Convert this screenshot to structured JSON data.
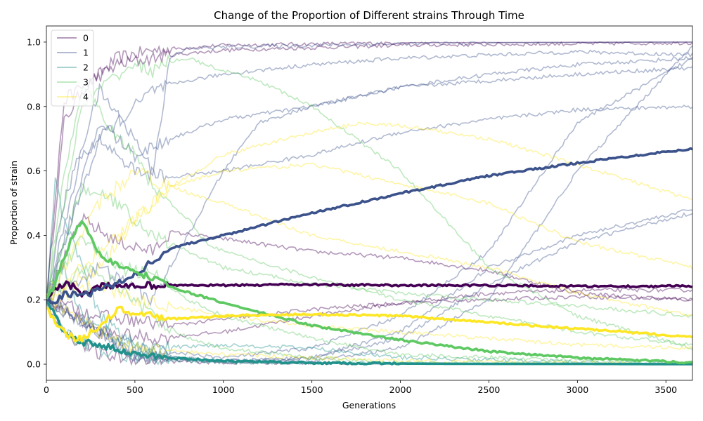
{
  "chart_data": {
    "type": "line",
    "title": "Change of the Proportion of Different strains Through Time",
    "xlabel": "Generations",
    "ylabel": "Proportion of strain",
    "xlim": [
      0,
      3650
    ],
    "ylim": [
      -0.05,
      1.05
    ],
    "x_ticks": [
      0,
      500,
      1000,
      1500,
      2000,
      2500,
      3000,
      3500
    ],
    "y_ticks": [
      0.0,
      0.2,
      0.4,
      0.6,
      0.8,
      1.0
    ],
    "x_tick_labels": [
      "0",
      "500",
      "1000",
      "1500",
      "2000",
      "2500",
      "3000",
      "3500"
    ],
    "y_tick_labels": [
      "0.0",
      "0.2",
      "0.4",
      "0.6",
      "0.8",
      "1.0"
    ],
    "grid": false,
    "legend_position": "top-left",
    "legend": [
      {
        "label": "0",
        "color": "#440154"
      },
      {
        "label": "1",
        "color": "#3b528b"
      },
      {
        "label": "2",
        "color": "#21918c"
      },
      {
        "label": "3",
        "color": "#5ec962"
      },
      {
        "label": "4",
        "color": "#fde725"
      }
    ],
    "mean_series": [
      {
        "strain": "0",
        "color": "#440154",
        "x": [
          0,
          50,
          100,
          150,
          200,
          300,
          400,
          500,
          1000,
          1500,
          2000,
          2500,
          3000,
          3500,
          3650
        ],
        "y": [
          0.2,
          0.23,
          0.25,
          0.24,
          0.22,
          0.24,
          0.245,
          0.245,
          0.245,
          0.247,
          0.245,
          0.245,
          0.242,
          0.242,
          0.243
        ]
      },
      {
        "strain": "1",
        "color": "#3b528b",
        "x": [
          0,
          50,
          100,
          200,
          300,
          400,
          500,
          600,
          700,
          1000,
          1500,
          2000,
          2500,
          3000,
          3500,
          3650
        ],
        "y": [
          0.2,
          0.19,
          0.22,
          0.21,
          0.23,
          0.25,
          0.28,
          0.32,
          0.36,
          0.4,
          0.47,
          0.53,
          0.585,
          0.625,
          0.66,
          0.668
        ]
      },
      {
        "strain": "2",
        "color": "#21918c",
        "x": [
          0,
          50,
          100,
          200,
          300,
          400,
          500,
          700,
          1000,
          1500,
          2000,
          2500,
          3000,
          3650
        ],
        "y": [
          0.2,
          0.15,
          0.1,
          0.07,
          0.06,
          0.045,
          0.03,
          0.02,
          0.01,
          0.004,
          0.002,
          0.001,
          0.001,
          0.0
        ]
      },
      {
        "strain": "3",
        "color": "#5ec962",
        "x": [
          0,
          50,
          100,
          150,
          200,
          250,
          300,
          400,
          500,
          600,
          700,
          1000,
          1500,
          2000,
          2500,
          3000,
          3650
        ],
        "y": [
          0.2,
          0.25,
          0.33,
          0.4,
          0.44,
          0.39,
          0.34,
          0.31,
          0.28,
          0.27,
          0.24,
          0.19,
          0.12,
          0.075,
          0.04,
          0.02,
          0.005
        ]
      },
      {
        "strain": "4",
        "color": "#fde725",
        "x": [
          0,
          50,
          100,
          150,
          200,
          250,
          300,
          400,
          500,
          600,
          700,
          1000,
          1500,
          2000,
          2500,
          3000,
          3650
        ],
        "y": [
          0.18,
          0.13,
          0.1,
          0.08,
          0.08,
          0.1,
          0.12,
          0.17,
          0.16,
          0.15,
          0.14,
          0.15,
          0.155,
          0.15,
          0.13,
          0.11,
          0.085
        ]
      }
    ],
    "replicate_series": [
      {
        "strain": "0",
        "x": [
          0,
          100,
          200,
          400,
          600,
          1000,
          2000,
          3650
        ],
        "y": [
          0.2,
          0.75,
          0.85,
          0.95,
          0.975,
          0.99,
          0.998,
          1.0
        ]
      },
      {
        "strain": "0",
        "x": [
          0,
          100,
          200,
          400,
          700,
          1000,
          2000,
          3650
        ],
        "y": [
          0.2,
          0.82,
          0.86,
          0.93,
          0.96,
          0.975,
          0.99,
          0.998
        ]
      },
      {
        "strain": "0",
        "x": [
          0,
          200,
          400,
          600,
          700,
          1000,
          1500,
          2000,
          2500,
          3000,
          3650
        ],
        "y": [
          0.2,
          0.45,
          0.38,
          0.35,
          0.41,
          0.39,
          0.35,
          0.33,
          0.29,
          0.22,
          0.2
        ]
      },
      {
        "strain": "0",
        "x": [
          0,
          300,
          600,
          1000,
          1500,
          2000,
          2500,
          3000,
          3650
        ],
        "y": [
          0.2,
          0.1,
          0.08,
          0.1,
          0.15,
          0.19,
          0.22,
          0.23,
          0.23
        ]
      },
      {
        "strain": "0",
        "x": [
          0,
          300,
          700,
          1000,
          1500,
          2000,
          2500,
          3000,
          3650
        ],
        "y": [
          0.2,
          0.15,
          0.12,
          0.14,
          0.17,
          0.19,
          0.2,
          0.21,
          0.2
        ]
      },
      {
        "strain": "0",
        "x": [
          0,
          100,
          300,
          600,
          1000,
          2000,
          3650
        ],
        "y": [
          0.2,
          0.1,
          0.03,
          0.01,
          0.005,
          0.001,
          0.0
        ]
      },
      {
        "strain": "1",
        "x": [
          0,
          100,
          300,
          500,
          600,
          700,
          800,
          1000,
          1500,
          2000,
          2500,
          3000,
          3650
        ],
        "y": [
          0.2,
          0.5,
          0.85,
          0.7,
          0.6,
          0.95,
          0.98,
          0.985,
          0.99,
          0.995,
          0.998,
          0.999,
          1.0
        ]
      },
      {
        "strain": "1",
        "x": [
          0,
          200,
          400,
          600,
          800,
          1000,
          1500,
          2000,
          2500,
          3000,
          3650
        ],
        "y": [
          0.2,
          0.65,
          0.75,
          0.85,
          0.88,
          0.9,
          0.93,
          0.95,
          0.96,
          0.97,
          0.96
        ]
      },
      {
        "strain": "1",
        "x": [
          0,
          300,
          500,
          700,
          1000,
          1500,
          2000,
          2500,
          3000,
          3650
        ],
        "y": [
          0.2,
          0.75,
          0.65,
          0.7,
          0.76,
          0.8,
          0.86,
          0.9,
          0.93,
          0.95
        ]
      },
      {
        "strain": "1",
        "x": [
          0,
          300,
          500,
          700,
          1000,
          1500,
          2000,
          2500,
          3000,
          3650
        ],
        "y": [
          0.2,
          0.7,
          0.6,
          0.58,
          0.6,
          0.65,
          0.72,
          0.76,
          0.79,
          0.8
        ]
      },
      {
        "strain": "1",
        "x": [
          0,
          300,
          600,
          800,
          1000,
          1200,
          1500,
          2000,
          2500,
          3000,
          3650
        ],
        "y": [
          0.2,
          0.3,
          0.2,
          0.4,
          0.6,
          0.75,
          0.8,
          0.86,
          0.88,
          0.9,
          0.92
        ]
      },
      {
        "strain": "1",
        "x": [
          0,
          500,
          1000,
          1500,
          2000,
          2500,
          3000,
          3650
        ],
        "y": [
          0.2,
          0.05,
          0.02,
          0.05,
          0.15,
          0.35,
          0.75,
          0.95
        ]
      },
      {
        "strain": "1",
        "x": [
          0,
          500,
          1000,
          1500,
          2000,
          2500,
          3000,
          3650
        ],
        "y": [
          0.2,
          0.03,
          0.01,
          0.01,
          0.05,
          0.2,
          0.6,
          0.99
        ]
      },
      {
        "strain": "1",
        "x": [
          0,
          500,
          1000,
          1500,
          2000,
          2500,
          3000,
          3650
        ],
        "y": [
          0.2,
          0.02,
          0.005,
          0.02,
          0.1,
          0.3,
          0.4,
          0.48
        ]
      },
      {
        "strain": "1",
        "x": [
          0,
          500,
          1000,
          1500,
          2000,
          2500,
          3000,
          3650
        ],
        "y": [
          0.2,
          0.03,
          0.01,
          0.02,
          0.08,
          0.25,
          0.38,
          0.47
        ]
      },
      {
        "strain": "2",
        "x": [
          0,
          50,
          100,
          200,
          300,
          500,
          700,
          1000,
          1500,
          2000,
          3650
        ],
        "y": [
          0.2,
          0.57,
          0.45,
          0.3,
          0.15,
          0.05,
          0.02,
          0.01,
          0.005,
          0.002,
          0.0
        ]
      },
      {
        "strain": "2",
        "x": [
          0,
          100,
          200,
          400,
          600,
          1000,
          1500,
          2000,
          3650
        ],
        "y": [
          0.2,
          0.3,
          0.15,
          0.08,
          0.05,
          0.06,
          0.05,
          0.02,
          0.0
        ]
      },
      {
        "strain": "2",
        "x": [
          0,
          100,
          300,
          500,
          1000,
          2000,
          3650
        ],
        "y": [
          0.2,
          0.1,
          0.04,
          0.02,
          0.005,
          0.0,
          0.0
        ]
      },
      {
        "strain": "3",
        "x": [
          0,
          100,
          200,
          300,
          400,
          500,
          600,
          700,
          800,
          1000,
          1200,
          1500,
          2000,
          2500,
          3000,
          3650
        ],
        "y": [
          0.2,
          0.5,
          0.8,
          0.85,
          0.9,
          0.93,
          0.91,
          0.94,
          0.95,
          0.91,
          0.88,
          0.8,
          0.6,
          0.3,
          0.15,
          0.05
        ]
      },
      {
        "strain": "3",
        "x": [
          0,
          100,
          200,
          300,
          400,
          500,
          600,
          700,
          800,
          900,
          1000,
          1500,
          2000,
          2500,
          3000,
          3650
        ],
        "y": [
          0.2,
          0.6,
          0.85,
          0.8,
          0.7,
          0.65,
          0.55,
          0.5,
          0.45,
          0.38,
          0.35,
          0.27,
          0.2,
          0.15,
          0.1,
          0.06
        ]
      },
      {
        "strain": "3",
        "x": [
          0,
          200,
          400,
          600,
          800,
          1000,
          1500,
          2000,
          2500,
          3000,
          3650
        ],
        "y": [
          0.2,
          0.55,
          0.5,
          0.4,
          0.35,
          0.3,
          0.25,
          0.22,
          0.2,
          0.18,
          0.15
        ]
      },
      {
        "strain": "3",
        "x": [
          0,
          200,
          400,
          600,
          800,
          1000,
          1500,
          2000,
          3650
        ],
        "y": [
          0.2,
          0.4,
          0.3,
          0.28,
          0.2,
          0.15,
          0.08,
          0.03,
          0.0
        ]
      },
      {
        "strain": "3",
        "x": [
          0,
          200,
          400,
          600,
          800,
          1000,
          1500,
          2000,
          3650
        ],
        "y": [
          0.2,
          0.3,
          0.25,
          0.15,
          0.08,
          0.05,
          0.02,
          0.005,
          0.0
        ]
      },
      {
        "strain": "4",
        "x": [
          0,
          300,
          500,
          700,
          1000,
          1500,
          1800,
          2000,
          2500,
          3000,
          3650
        ],
        "y": [
          0.2,
          0.3,
          0.45,
          0.55,
          0.65,
          0.72,
          0.75,
          0.74,
          0.7,
          0.62,
          0.51
        ]
      },
      {
        "strain": "4",
        "x": [
          0,
          300,
          500,
          700,
          1000,
          1500,
          2000,
          2500,
          3000,
          3650
        ],
        "y": [
          0.2,
          0.35,
          0.45,
          0.55,
          0.6,
          0.62,
          0.56,
          0.5,
          0.38,
          0.3
        ]
      },
      {
        "strain": "4",
        "x": [
          0,
          300,
          500,
          700,
          1000,
          1500,
          2000,
          2500,
          3000,
          3650
        ],
        "y": [
          0.2,
          0.5,
          0.6,
          0.55,
          0.5,
          0.4,
          0.35,
          0.3,
          0.22,
          0.15
        ]
      },
      {
        "strain": "4",
        "x": [
          0,
          300,
          500,
          1000,
          1500,
          2000,
          2500,
          3000,
          3650
        ],
        "y": [
          0.2,
          0.25,
          0.2,
          0.15,
          0.12,
          0.1,
          0.08,
          0.06,
          0.05
        ]
      },
      {
        "strain": "4",
        "x": [
          0,
          300,
          500,
          1000,
          1500,
          2000,
          3650
        ],
        "y": [
          0.2,
          0.1,
          0.05,
          0.03,
          0.02,
          0.01,
          0.0
        ]
      }
    ]
  }
}
